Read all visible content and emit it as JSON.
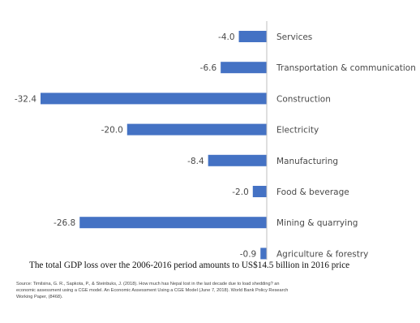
{
  "chart_data": {
    "type": "bar",
    "orientation": "horizontal",
    "categories": [
      "Services",
      "Transportation & communication",
      "Construction",
      "Electricity",
      "Manufacturing",
      "Food & beverage",
      "Mining & quarrying",
      "Agriculture & forestry"
    ],
    "values": [
      -4.0,
      -6.6,
      -32.4,
      -20.0,
      -8.4,
      -2.0,
      -26.8,
      -0.9
    ],
    "value_labels": [
      "-4.0",
      "-6.6",
      "-32.4",
      "-20.0",
      "-8.4",
      "-2.0",
      "-26.8",
      "-0.9"
    ],
    "xlim": [
      -32.4,
      0
    ],
    "grid": false,
    "legend": "none",
    "bar_color": "#4472c4",
    "axis_color": "#bfbfbf"
  },
  "caption": "The total GDP loss over the 2006-2016 period amounts to US$14.5 billion in 2016 price",
  "source_lines": [
    "Source: Timilsina, G. R., Sapkota, P., & Steinbuks, J. (2018). How much has Nepal lost in the last decade due to load shedding? an",
    "economic assessment using a CGE model. An Economic Assessment Using a CGE Model (June 7, 2018). World Bank Policy Research",
    "Working Paper, (8468)."
  ]
}
